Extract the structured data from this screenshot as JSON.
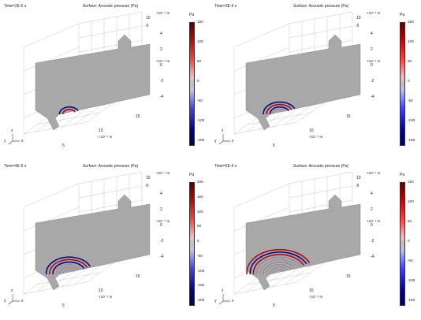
{
  "panels": [
    {
      "time": "Time=2E-6 s",
      "title": "Surface: Acoustic pressure (Pa)",
      "colorbar_unit": "Pa",
      "colorbar_ticks": [
        "150",
        "100",
        "50",
        "0",
        "-50",
        "-100",
        "-150"
      ],
      "z_axis_unit": "×10⁻⁴ m",
      "z_top_tick": "10",
      "z_ticks": [
        "4",
        "2",
        "0",
        "-2",
        "-4"
      ],
      "y_axis_unit": "×10⁻⁴ m",
      "y_top_tick": "-5",
      "x_ticks": [
        "15",
        "10",
        "5"
      ],
      "x_axis_unit": "×10⁻⁴ m",
      "wave_rings": 2,
      "triad": [
        "y",
        "z",
        "x"
      ]
    },
    {
      "time": "Time=3E-6 s",
      "title": "Surface: Acoustic pressure (Pa)",
      "colorbar_unit": "Pa",
      "colorbar_ticks": [
        "150",
        "100",
        "50",
        "0",
        "-50",
        "-100",
        "-150"
      ],
      "z_axis_unit": "×10⁻⁴ m",
      "z_top_tick": "10",
      "z_ticks": [
        "4",
        "2",
        "0",
        "-2",
        "-4"
      ],
      "y_axis_unit": "×10⁻⁴ m",
      "y_top_tick": "-5",
      "x_ticks": [
        "15",
        "10",
        "5"
      ],
      "x_axis_unit": "×10⁻⁴ m",
      "wave_rings": 4,
      "triad": [
        "y",
        "z",
        "x"
      ]
    },
    {
      "time": "Time=4E-6 s",
      "title": "Surface: Acoustic pressure (Pa)",
      "colorbar_unit": "Pa",
      "colorbar_ticks": [
        "200",
        "150",
        "100",
        "50",
        "0",
        "-50",
        "-100",
        "-150",
        "-200"
      ],
      "z_axis_unit": "×10⁻⁴ m",
      "z_top_tick": "10",
      "z_ticks": [
        "4",
        "2",
        "0",
        "-2",
        "-4"
      ],
      "y_axis_unit": "×10⁻⁴ m",
      "y_top_tick": "-5",
      "x_ticks": [
        "15",
        "10",
        "5"
      ],
      "x_axis_unit": "×10⁻⁴ m",
      "wave_rings": 6,
      "triad": [
        "y",
        "z",
        "x"
      ]
    },
    {
      "time": "Time=5E-6 s",
      "title": "Surface: Acoustic pressure (Pa)",
      "colorbar_unit": "Pa",
      "colorbar_ticks": [
        "150",
        "100",
        "50",
        "0",
        "-50",
        "-100",
        "-150"
      ],
      "z_axis_unit": "×10⁻⁴ m",
      "z_top_tick": "10",
      "z_ticks": [
        "4",
        "2",
        "0",
        "-2",
        "-4"
      ],
      "y_axis_unit": "×10⁻⁴ m",
      "y_top_tick": "-5",
      "x_ticks": [
        "15",
        "10",
        "5"
      ],
      "x_axis_unit": "×10⁻⁴ m",
      "wave_rings": 9,
      "triad": [
        "y",
        "z",
        "x"
      ]
    }
  ],
  "colors": {
    "positive": "#b40000",
    "negative": "#00008c",
    "zero": "#bdbdbd",
    "surface": "#a8a8a8",
    "grid": "#c8c8c8"
  }
}
